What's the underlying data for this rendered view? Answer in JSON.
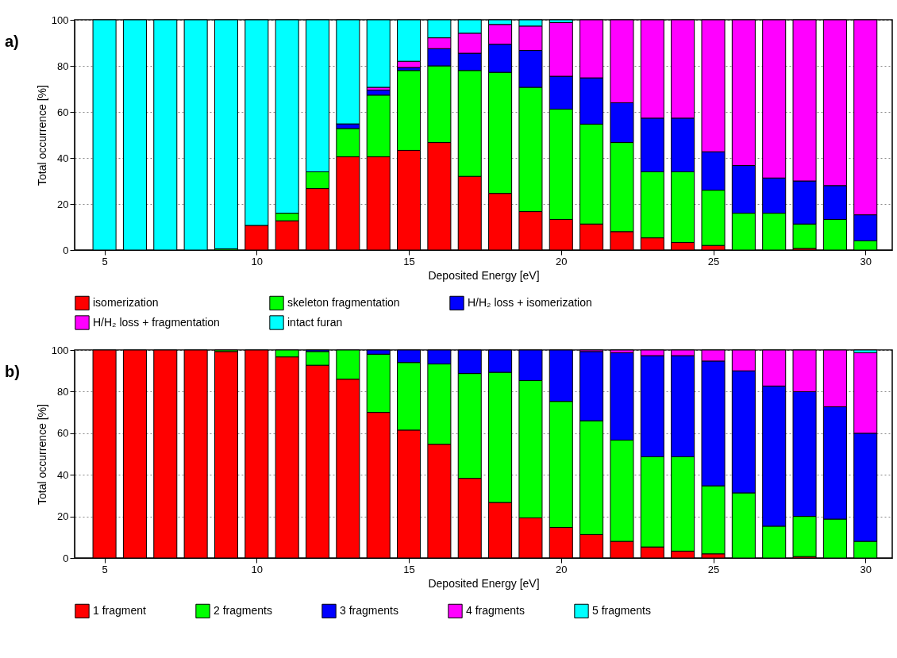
{
  "chart_data": [
    {
      "type": "bar",
      "stacked": true,
      "annotations": [
        "a)"
      ],
      "xlabel": "Deposited Energy [eV]",
      "ylabel": "Total occurrence [%]",
      "x": [
        5,
        6,
        7,
        8,
        9,
        10,
        11,
        12,
        13,
        14,
        15,
        16,
        17,
        18,
        19,
        20,
        21,
        22,
        23,
        24,
        25,
        26,
        27,
        28,
        29,
        30
      ],
      "xlim": [
        4.15,
        30.75
      ],
      "xticks": [
        5,
        10,
        15,
        20,
        25,
        30
      ],
      "ylim": [
        0,
        100
      ],
      "yticks": [
        0,
        20,
        40,
        60,
        80,
        100
      ],
      "grid": "y",
      "legend": "bottom",
      "series": [
        {
          "name": "isomerization",
          "color": "#ff0000",
          "values": [
            null,
            null,
            null,
            null,
            null,
            10.7,
            12.7,
            26.7,
            40.5,
            40.5,
            43.3,
            46.7,
            32,
            24.6,
            16.7,
            13.3,
            11.3,
            8,
            5.3,
            3.3,
            2,
            null,
            null,
            0.7,
            null,
            null
          ]
        },
        {
          "name": "skeleton fragmentation",
          "color": "#00ff00",
          "values": [
            null,
            null,
            null,
            null,
            0.5,
            null,
            3.3,
            7.3,
            12.3,
            26.8,
            34.7,
            33.3,
            46,
            52.6,
            54,
            47.9,
            43.4,
            38.7,
            28.7,
            30.7,
            24,
            16,
            16,
            10.6,
            13.3,
            4
          ]
        },
        {
          "name": "H/H₂ loss + isomerization",
          "color": "#0000ff",
          "values": [
            null,
            null,
            null,
            null,
            null,
            null,
            null,
            null,
            2,
            2.2,
            1.3,
            7.5,
            7.5,
            12.2,
            16,
            14.3,
            20.1,
            17.3,
            23.3,
            23.3,
            16.7,
            20.7,
            15.3,
            18.7,
            14.7,
            11.3
          ]
        },
        {
          "name": "H/H₂ loss + fragmentation",
          "color": "#ff00ff",
          "values": [
            null,
            null,
            null,
            null,
            null,
            null,
            null,
            null,
            null,
            1.2,
            2.7,
            4.7,
            8.7,
            8.6,
            10.6,
            23.3,
            25.2,
            36,
            42.7,
            42.7,
            57.3,
            63.3,
            68.7,
            70,
            72,
            84.7
          ]
        },
        {
          "name": "intact furan",
          "color": "#00ffff",
          "values": [
            100,
            100,
            100,
            100,
            99.5,
            89.3,
            84,
            66,
            45.2,
            29.3,
            18,
            7.8,
            5.8,
            2,
            2.7,
            1.2,
            null,
            null,
            null,
            null,
            null,
            null,
            null,
            null,
            null,
            null
          ]
        }
      ]
    },
    {
      "type": "bar",
      "stacked": true,
      "annotations": [
        "b)"
      ],
      "xlabel": "Deposited Energy [eV]",
      "ylabel": "Total occurrence [%]",
      "x": [
        5,
        6,
        7,
        8,
        9,
        10,
        11,
        12,
        13,
        14,
        15,
        16,
        17,
        18,
        19,
        20,
        21,
        22,
        23,
        24,
        25,
        26,
        27,
        28,
        29,
        30
      ],
      "xlim": [
        4.15,
        30.75
      ],
      "xticks": [
        5,
        10,
        15,
        20,
        25,
        30
      ],
      "ylim": [
        0,
        100
      ],
      "yticks": [
        0,
        20,
        40,
        60,
        80,
        100
      ],
      "grid": "y",
      "legend": "bottom",
      "series": [
        {
          "name": "1 fragment",
          "color": "#ff0000",
          "values": [
            100,
            100,
            100,
            100,
            99.3,
            100,
            96.7,
            92.7,
            86,
            70,
            61.5,
            54.7,
            38.3,
            26.7,
            19.3,
            14.7,
            11.3,
            8,
            5.3,
            3.3,
            2,
            null,
            null,
            0.7,
            null,
            null
          ]
        },
        {
          "name": "2 fragments",
          "color": "#00ff00",
          "values": [
            null,
            null,
            null,
            null,
            0.7,
            null,
            3.3,
            6.6,
            14,
            28,
            32.5,
            38.6,
            50.4,
            62.6,
            66,
            60.6,
            54.7,
            48.7,
            43.4,
            45.4,
            32.7,
            31.3,
            15.3,
            19.3,
            18.7,
            8
          ]
        },
        {
          "name": "3 fragments",
          "color": "#0000ff",
          "values": [
            null,
            null,
            null,
            null,
            null,
            null,
            null,
            0.7,
            null,
            2,
            6,
            6.7,
            11.3,
            10.7,
            14.7,
            24.7,
            33.3,
            42,
            48.6,
            48.6,
            60,
            58.7,
            67.4,
            60,
            54,
            52
          ]
        },
        {
          "name": "4 fragments",
          "color": "#ff00ff",
          "values": [
            null,
            null,
            null,
            null,
            null,
            null,
            null,
            null,
            null,
            null,
            null,
            null,
            null,
            null,
            null,
            null,
            0.7,
            1.3,
            2.7,
            2.7,
            5.3,
            10,
            17.3,
            20,
            27.3,
            38.7
          ]
        },
        {
          "name": "5 fragments",
          "color": "#00ffff",
          "values": [
            null,
            null,
            null,
            null,
            null,
            null,
            null,
            null,
            null,
            null,
            null,
            null,
            null,
            null,
            null,
            null,
            null,
            null,
            null,
            null,
            null,
            null,
            null,
            null,
            null,
            1.3
          ]
        }
      ]
    }
  ]
}
